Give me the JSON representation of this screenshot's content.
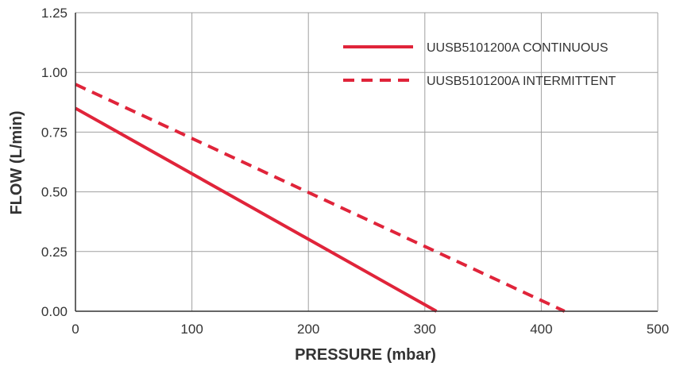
{
  "chart_data": {
    "type": "line",
    "title": "",
    "xlabel": "PRESSURE (mbar)",
    "ylabel": "FLOW (L/min)",
    "xlim": [
      0,
      500
    ],
    "ylim": [
      0,
      1.25
    ],
    "xticks": [
      "0",
      "100",
      "200",
      "300",
      "400",
      "500"
    ],
    "yticks": [
      "0.00",
      "0.25",
      "0.50",
      "0.75",
      "1.00",
      "1.25"
    ],
    "grid": true,
    "legend_position": "top-right",
    "series": [
      {
        "name": "UUSB5101200A CONTINUOUS",
        "style": "solid",
        "color": "#e0243a",
        "x": [
          0,
          310
        ],
        "y": [
          0.85,
          0
        ]
      },
      {
        "name": "UUSB5101200A INTERMITTENT",
        "style": "dashed",
        "color": "#e0243a",
        "x": [
          0,
          420
        ],
        "y": [
          0.95,
          0
        ]
      }
    ]
  }
}
